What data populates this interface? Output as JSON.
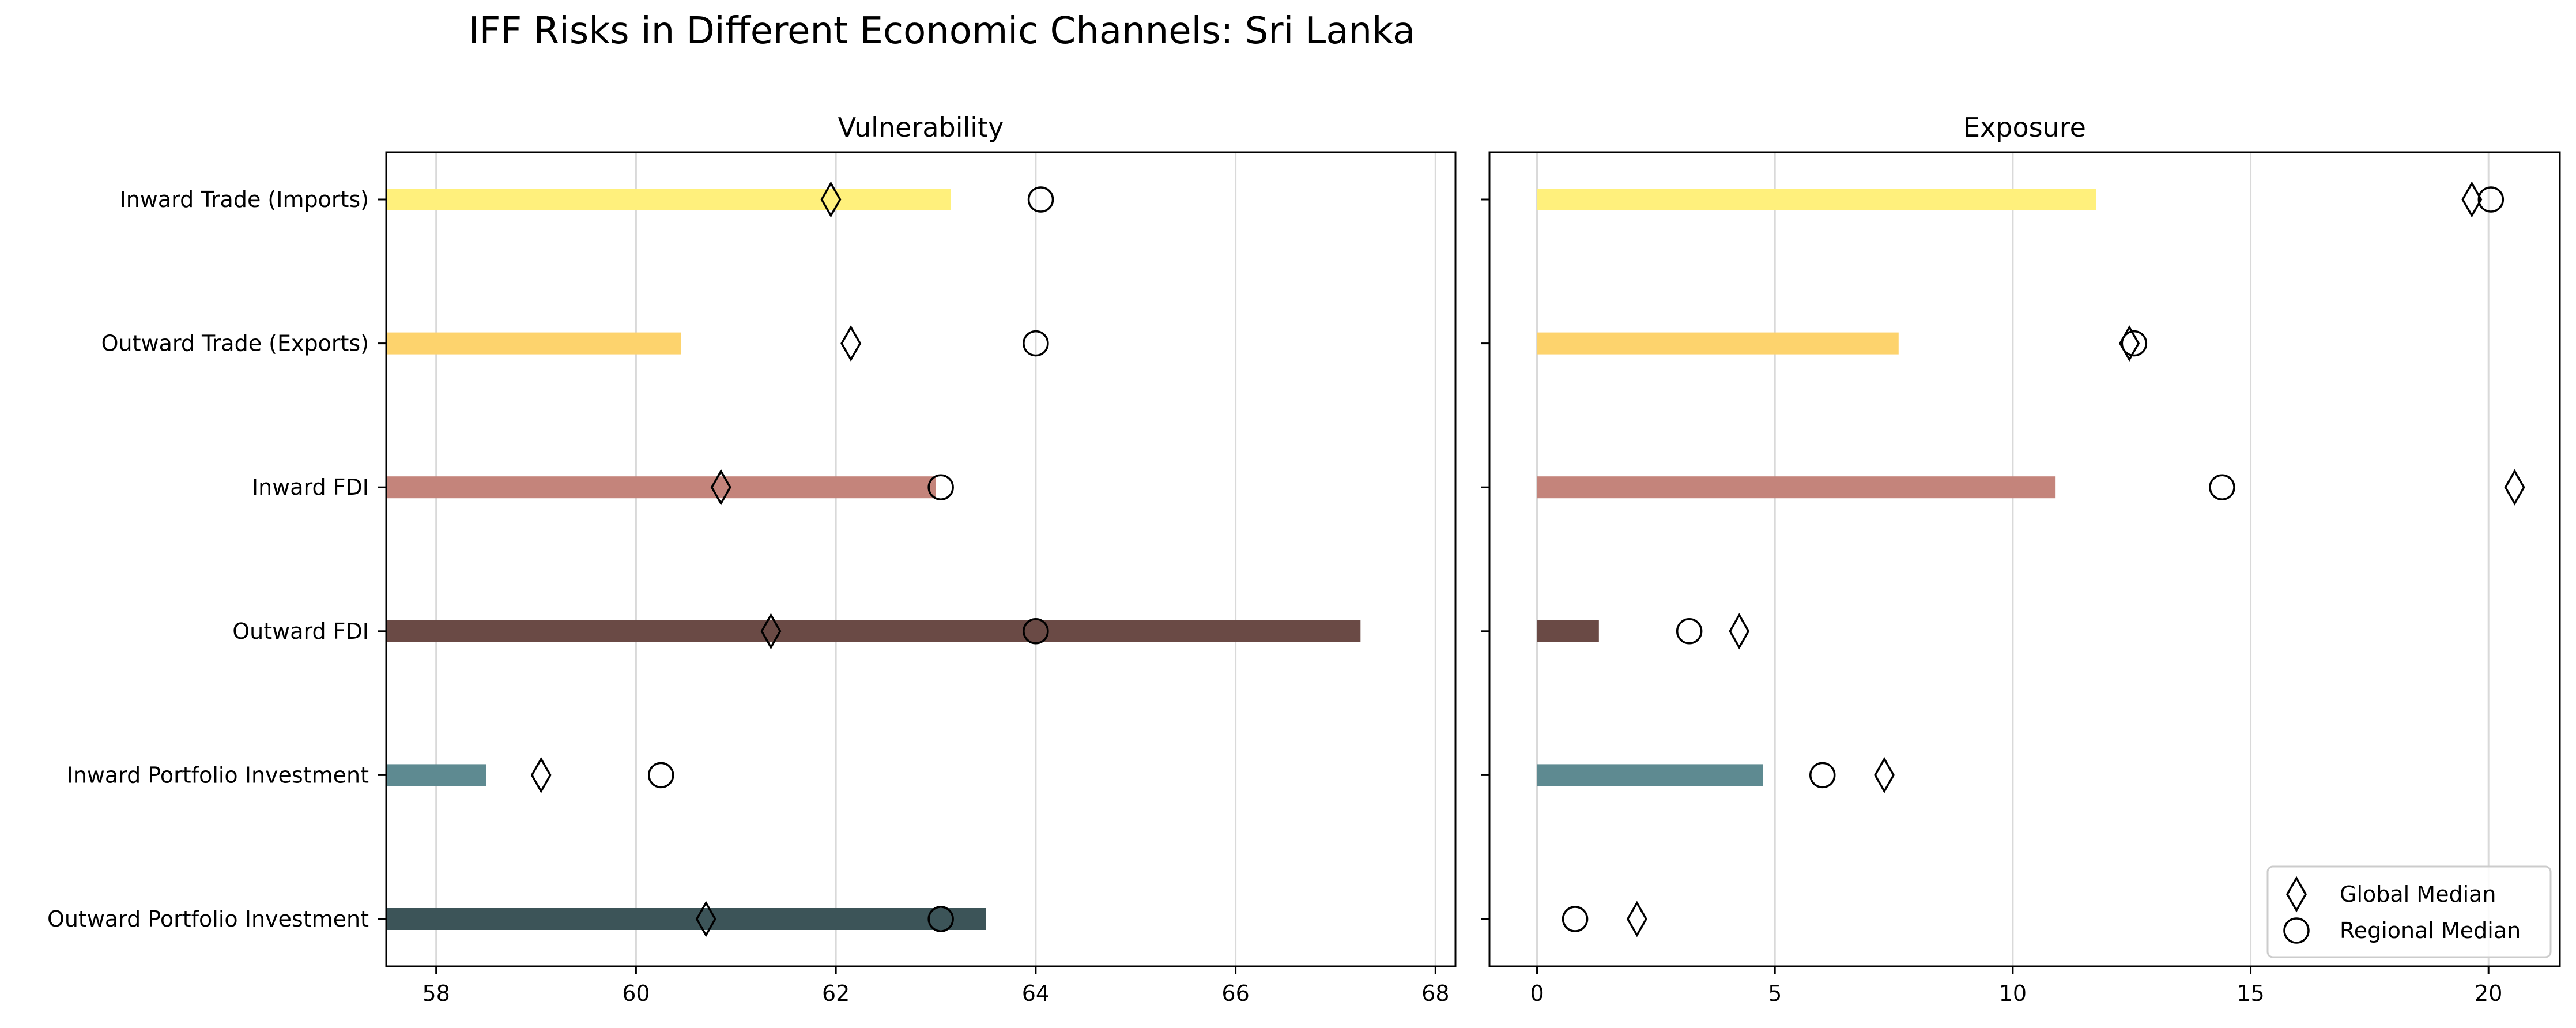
{
  "chart_data": {
    "title": "IFF Risks in Different Economic Channels: Sri Lanka",
    "categories": [
      "Inward Trade (Imports)",
      "Outward Trade (Exports)",
      "Inward FDI",
      "Outward FDI",
      "Inward Portfolio Investment",
      "Outward Portfolio Investment"
    ],
    "colors": [
      "#fff07c",
      "#fdd36d",
      "#c4847b",
      "#6a4a45",
      "#5e8a91",
      "#3c5458"
    ],
    "legend": {
      "placement": "lower right",
      "entries": [
        {
          "label": "Global Median",
          "marker": "diamond"
        },
        {
          "label": "Regional Median",
          "marker": "circle"
        }
      ]
    },
    "panels": [
      {
        "type": "bar",
        "orientation": "horizontal",
        "title": "Vulnerability",
        "xlim": [
          57.5,
          68.2
        ],
        "bar_start": 57.5,
        "xticks": [
          58,
          60,
          62,
          64,
          66,
          68
        ],
        "grid": "x",
        "values": [
          63.15,
          60.45,
          63.0,
          67.25,
          58.5,
          63.5
        ],
        "global_median": [
          61.95,
          62.15,
          60.85,
          61.35,
          59.05,
          60.7
        ],
        "regional_median": [
          64.05,
          64.0,
          63.05,
          64.0,
          60.25,
          63.05
        ]
      },
      {
        "type": "bar",
        "orientation": "horizontal",
        "title": "Exposure",
        "xlim": [
          -1.0,
          21.5
        ],
        "bar_start": 0,
        "xticks": [
          0,
          5,
          10,
          15,
          20
        ],
        "grid": "x",
        "values": [
          11.75,
          7.6,
          10.9,
          1.3,
          4.75,
          0.0
        ],
        "global_median": [
          19.65,
          12.45,
          20.55,
          4.25,
          7.3,
          2.1
        ],
        "regional_median": [
          20.05,
          12.55,
          14.4,
          3.2,
          6.0,
          0.8
        ]
      }
    ]
  }
}
